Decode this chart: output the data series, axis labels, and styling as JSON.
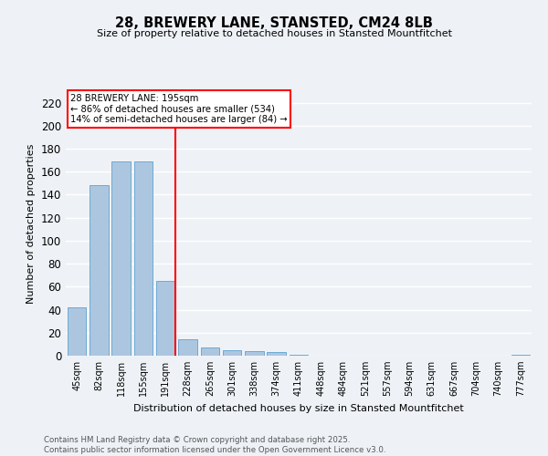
{
  "title": "28, BREWERY LANE, STANSTED, CM24 8LB",
  "subtitle": "Size of property relative to detached houses in Stansted Mountfitchet",
  "xlabel": "Distribution of detached houses by size in Stansted Mountfitchet",
  "ylabel": "Number of detached properties",
  "footer_line1": "Contains HM Land Registry data © Crown copyright and database right 2025.",
  "footer_line2": "Contains public sector information licensed under the Open Government Licence v3.0.",
  "categories": [
    "45sqm",
    "82sqm",
    "118sqm",
    "155sqm",
    "191sqm",
    "228sqm",
    "265sqm",
    "301sqm",
    "338sqm",
    "374sqm",
    "411sqm",
    "448sqm",
    "484sqm",
    "521sqm",
    "557sqm",
    "594sqm",
    "631sqm",
    "667sqm",
    "704sqm",
    "740sqm",
    "777sqm"
  ],
  "values": [
    42,
    148,
    169,
    169,
    65,
    14,
    7,
    5,
    4,
    3,
    1,
    0,
    0,
    0,
    0,
    0,
    0,
    0,
    0,
    0,
    1
  ],
  "bar_color": "#adc6e0",
  "bar_edge_color": "#6aaad4",
  "subject_line_color": "red",
  "annotation_title": "28 BREWERY LANE: 195sqm",
  "annotation_line1": "← 86% of detached houses are smaller (534)",
  "annotation_line2": "14% of semi-detached houses are larger (84) →",
  "annotation_box_color": "white",
  "annotation_box_edge_color": "red",
  "ylim": [
    0,
    230
  ],
  "yticks": [
    0,
    20,
    40,
    60,
    80,
    100,
    120,
    140,
    160,
    180,
    200,
    220
  ],
  "bg_color": "#eef2f7",
  "grid_color": "white"
}
